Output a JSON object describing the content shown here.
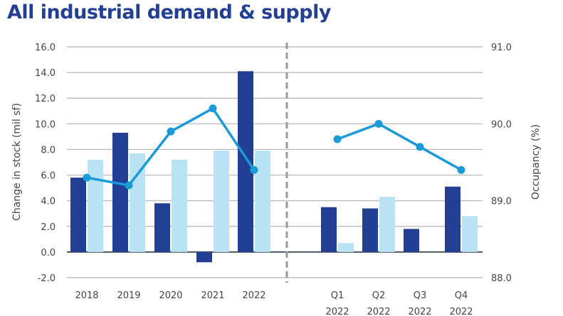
{
  "chart_data": {
    "type": "bar",
    "title": "All industrial demand & supply",
    "ylabel": "Change in stock (mil sf)",
    "y2label": "Occupancy (%)",
    "ylim": [
      -2,
      16
    ],
    "y2lim": [
      88,
      91
    ],
    "yticks": [
      "-2.0",
      "0.0",
      "2.0",
      "4.0",
      "6.0",
      "8.0",
      "10.0",
      "12.0",
      "14.0",
      "16.0"
    ],
    "y2ticks": [
      "88.0",
      "89.0",
      "90.0",
      "91.0"
    ],
    "grid": true,
    "groups": [
      {
        "categories": [
          "2018",
          "2019",
          "2020",
          "2021",
          "2022"
        ],
        "series": [
          {
            "values": [
              5.8,
              9.3,
              3.8,
              -0.8,
              14.1
            ],
            "color": "#233f93",
            "type": "bar"
          },
          {
            "values": [
              7.2,
              7.7,
              7.2,
              7.9,
              7.9
            ],
            "color": "#b9e2f5",
            "type": "bar"
          },
          {
            "values": [
              89.3,
              89.2,
              89.9,
              90.2,
              89.4
            ],
            "color": "#1a9ad6",
            "type": "line",
            "axis": "right"
          }
        ]
      },
      {
        "categories": [
          "Q1\n2022",
          "Q2\n2022",
          "Q3\n2022",
          "Q4\n2022"
        ],
        "series": [
          {
            "values": [
              3.5,
              3.4,
              1.8,
              5.1
            ],
            "color": "#233f93",
            "type": "bar"
          },
          {
            "values": [
              0.7,
              4.3,
              0,
              2.8
            ],
            "color": "#b9e2f5",
            "type": "bar"
          },
          {
            "values": [
              89.8,
              90.0,
              89.7,
              89.4
            ],
            "color": "#1a9ad6",
            "type": "line",
            "axis": "right"
          }
        ]
      }
    ]
  }
}
